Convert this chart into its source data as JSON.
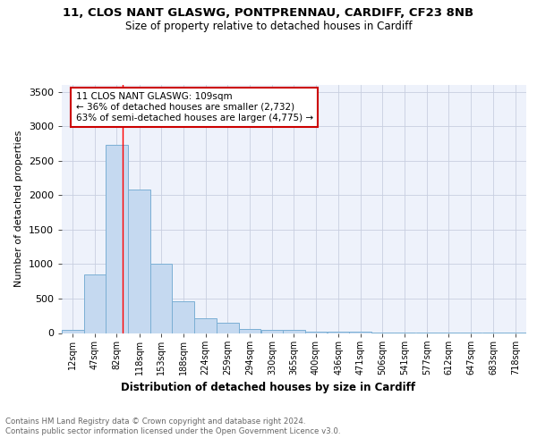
{
  "title1": "11, CLOS NANT GLASWG, PONTPRENNAU, CARDIFF, CF23 8NB",
  "title2": "Size of property relative to detached houses in Cardiff",
  "xlabel": "Distribution of detached houses by size in Cardiff",
  "ylabel": "Number of detached properties",
  "bin_labels": [
    "12sqm",
    "47sqm",
    "82sqm",
    "118sqm",
    "153sqm",
    "188sqm",
    "224sqm",
    "259sqm",
    "294sqm",
    "330sqm",
    "365sqm",
    "400sqm",
    "436sqm",
    "471sqm",
    "506sqm",
    "541sqm",
    "577sqm",
    "612sqm",
    "647sqm",
    "683sqm",
    "718sqm"
  ],
  "bin_lefts": [
    12,
    47,
    82,
    118,
    153,
    188,
    224,
    259,
    294,
    330,
    365,
    400,
    436,
    471,
    506,
    541,
    577,
    612,
    647,
    683,
    718
  ],
  "bin_width": 35,
  "heights": [
    50,
    850,
    2730,
    2080,
    1010,
    460,
    215,
    145,
    60,
    40,
    40,
    25,
    20,
    15,
    5,
    5,
    3,
    2,
    2,
    2,
    2
  ],
  "bar_color": "#c5d9f0",
  "bar_edge_color": "#7bafd4",
  "red_line_x": 109,
  "annotation_text": "11 CLOS NANT GLASWG: 109sqm\n← 36% of detached houses are smaller (2,732)\n63% of semi-detached houses are larger (4,775) →",
  "annotation_box_color": "#ffffff",
  "annotation_box_edge": "#cc0000",
  "grid_color": "#c8cfe0",
  "background_color": "#eef2fb",
  "footer_text": "Contains HM Land Registry data © Crown copyright and database right 2024.\nContains public sector information licensed under the Open Government Licence v3.0.",
  "ylim": [
    0,
    3600
  ],
  "yticks": [
    0,
    500,
    1000,
    1500,
    2000,
    2500,
    3000,
    3500
  ]
}
